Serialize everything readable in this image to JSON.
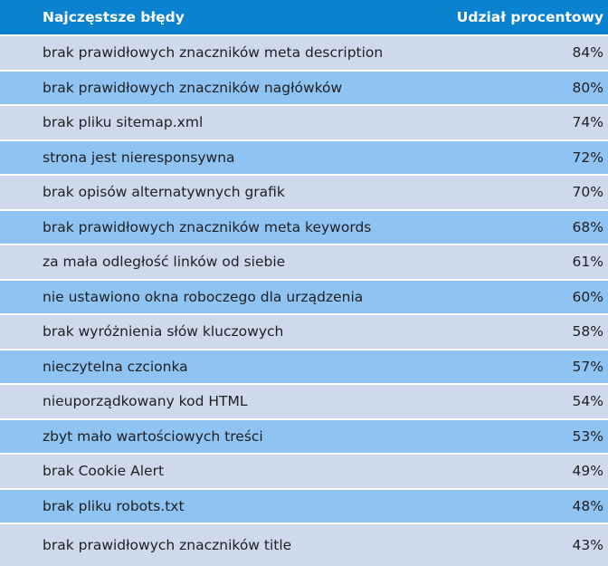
{
  "header": {
    "col_error": "Najczęstsze błędy",
    "col_share": "Udział procentowy"
  },
  "colors": {
    "header_bg": "#0a82cf",
    "row_light": "#cedaec",
    "row_dark": "#8ec3f2"
  },
  "rows": [
    {
      "error": "brak prawidłowych znaczników meta description",
      "share": "84%"
    },
    {
      "error": "brak prawidłowych znaczników nagłówków",
      "share": "80%"
    },
    {
      "error": "brak pliku sitemap.xml",
      "share": "74%"
    },
    {
      "error": "strona jest nieresponsywna",
      "share": "72%"
    },
    {
      "error": "brak opisów alternatywnych grafik",
      "share": "70%"
    },
    {
      "error": "brak prawidłowych znaczników meta keywords",
      "share": "68%"
    },
    {
      "error": "za mała odległość linków od siebie",
      "share": "61%"
    },
    {
      "error": "nie ustawiono okna roboczego dla urządzenia",
      "share": "60%"
    },
    {
      "error": "brak wyróżnienia słów kluczowych",
      "share": "58%"
    },
    {
      "error": "nieczytelna czcionka",
      "share": "57%"
    },
    {
      "error": "nieuporządkowany kod HTML",
      "share": "54%"
    },
    {
      "error": "zbyt mało wartościowych treści",
      "share": "53%"
    },
    {
      "error": "brak Cookie Alert",
      "share": "49%"
    },
    {
      "error": "brak pliku robots.txt",
      "share": "48%"
    },
    {
      "error": "brak prawidłowych znaczników title",
      "share": "43%"
    }
  ]
}
